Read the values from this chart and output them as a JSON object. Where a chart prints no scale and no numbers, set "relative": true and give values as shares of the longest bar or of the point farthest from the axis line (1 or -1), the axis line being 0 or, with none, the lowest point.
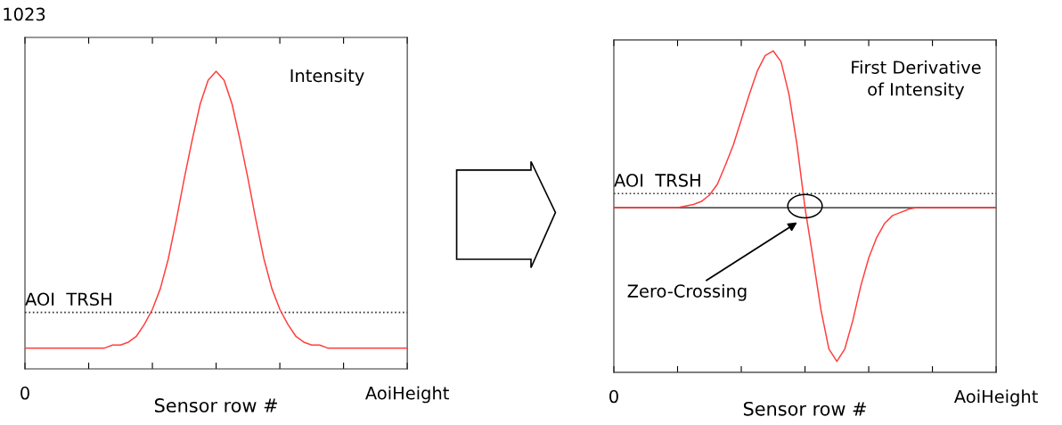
{
  "chart_data": [
    {
      "type": "line",
      "relative": true,
      "xlabel": "Sensor row #",
      "categories": [
        "0",
        null,
        null,
        null,
        null,
        null,
        null,
        null,
        null,
        null,
        null,
        null,
        null,
        null,
        null,
        null,
        null,
        null,
        null,
        null,
        null,
        null,
        null,
        null,
        null,
        null,
        null,
        null,
        null,
        null,
        null,
        null,
        null,
        null,
        null,
        null,
        null,
        null,
        null,
        null,
        null,
        null,
        null,
        null,
        null,
        null,
        null,
        null,
        "AoiHeight"
      ],
      "annotations": [
        "1023",
        "Intensity"
      ],
      "ref_lines": [
        {
          "axis": "y",
          "value": 0.19,
          "label": "AOI  TRSH",
          "color": "#333333",
          "line_style": "dotted"
        }
      ],
      "series": [
        {
          "color": "#ff4040",
          "values": [
            0.07,
            0.07,
            0.07,
            0.07,
            0.07,
            0.07,
            0.07,
            0.07,
            0.07,
            0.07,
            0.07,
            0.08,
            0.08,
            0.09,
            0.11,
            0.15,
            0.2,
            0.27,
            0.37,
            0.5,
            0.64,
            0.77,
            0.89,
            0.97,
            1,
            0.97,
            0.89,
            0.77,
            0.64,
            0.5,
            0.37,
            0.27,
            0.2,
            0.15,
            0.11,
            0.09,
            0.08,
            0.08,
            0.07,
            0.07,
            0.07,
            0.07,
            0.07,
            0.07,
            0.07,
            0.07,
            0.07,
            0.07,
            0.07
          ]
        }
      ]
    },
    {
      "type": "line",
      "relative": true,
      "xlabel": "Sensor row #",
      "categories": [
        "0",
        null,
        null,
        null,
        null,
        null,
        null,
        null,
        null,
        null,
        null,
        null,
        null,
        null,
        null,
        null,
        null,
        null,
        null,
        null,
        null,
        null,
        null,
        null,
        null,
        null,
        null,
        null,
        null,
        null,
        null,
        null,
        null,
        null,
        null,
        null,
        null,
        null,
        null,
        null,
        null,
        null,
        null,
        null,
        null,
        null,
        null,
        null,
        "AoiHeight"
      ],
      "annotations": [
        "First Derivative\nof Intensity",
        "Zero-Crossing"
      ],
      "ref_lines": [
        {
          "axis": "y",
          "value": 0.09,
          "label": "AOI  TRSH",
          "color": "#333333",
          "line_style": "dotted"
        },
        {
          "axis": "y",
          "value": 0,
          "label": null,
          "color": "#555555",
          "line_style": "solid"
        }
      ],
      "series": [
        {
          "color": "#ff4040",
          "values": [
            0,
            0,
            0,
            0,
            0,
            0,
            0,
            0,
            0,
            0.01,
            0.02,
            0.04,
            0.08,
            0.15,
            0.27,
            0.4,
            0.56,
            0.72,
            0.87,
            0.97,
            1,
            0.93,
            0.72,
            0.4,
            0,
            -0.32,
            -0.65,
            -0.9,
            -0.98,
            -0.9,
            -0.72,
            -0.5,
            -0.32,
            -0.19,
            -0.1,
            -0.05,
            -0.03,
            -0.01,
            0,
            0,
            0,
            0,
            0,
            0,
            0,
            0,
            0,
            0,
            0
          ]
        }
      ]
    }
  ]
}
